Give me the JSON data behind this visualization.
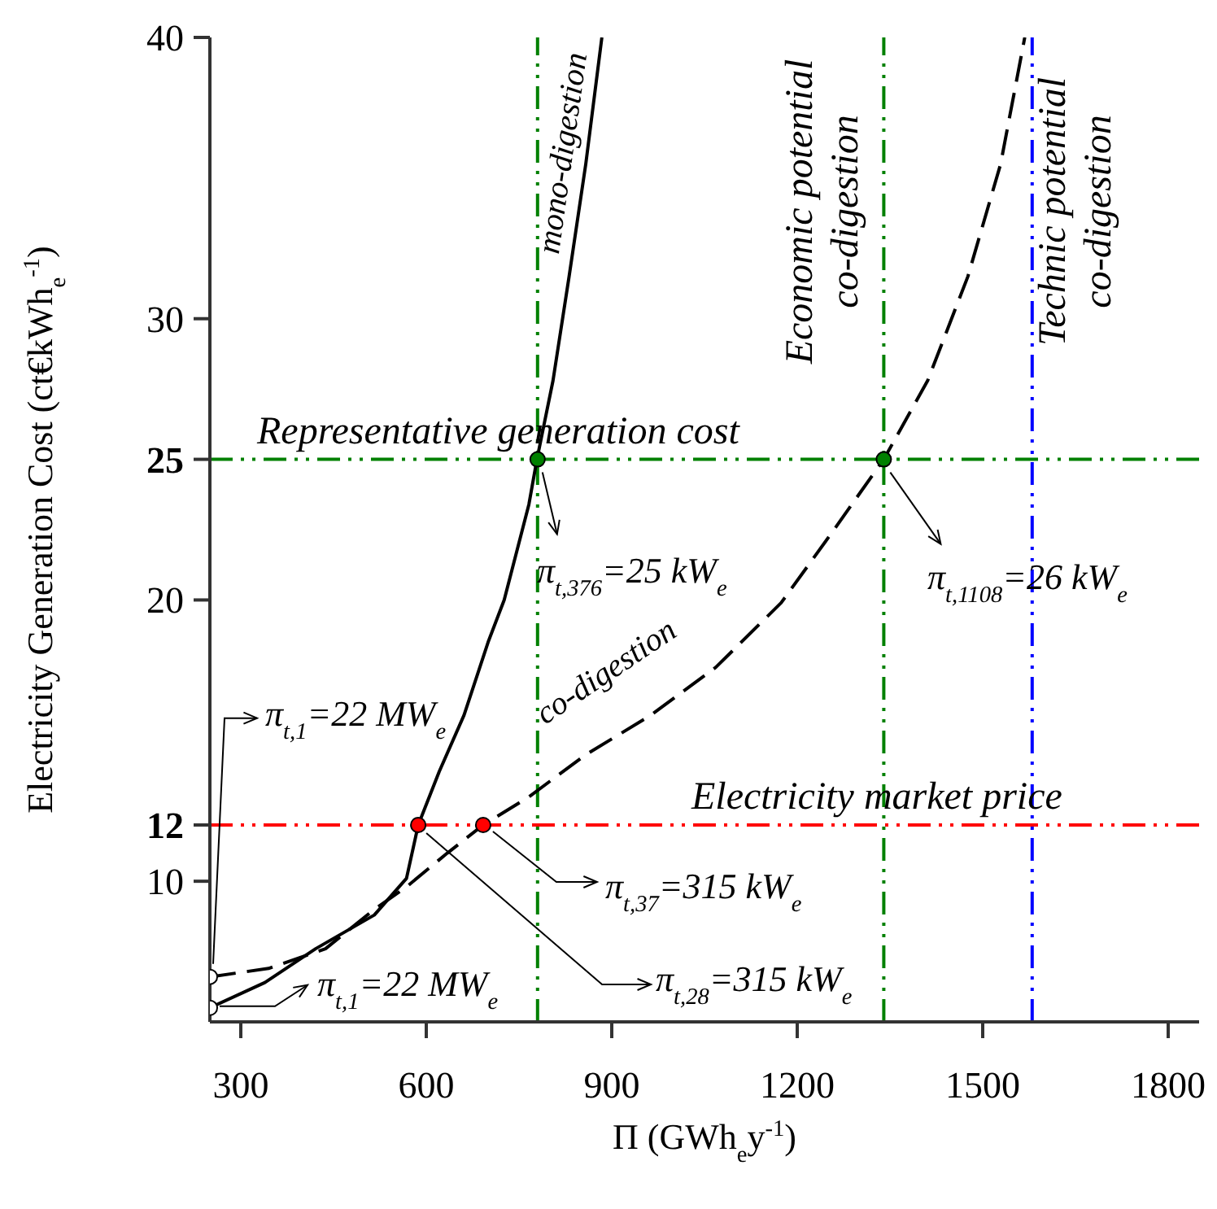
{
  "chart_data": {
    "type": "line",
    "xlabel": "Π (GWh$_{e}$y$^{-1}$)",
    "ylabel": "Electricity Generation Cost (ct€kWh$_{e}$$^{-1}$)",
    "xlim": [
      250,
      1850
    ],
    "xticks": [
      300,
      600,
      900,
      1200,
      1500,
      1800
    ],
    "ylim": [
      5,
      40
    ],
    "yticks": [
      10,
      12,
      20,
      25,
      30,
      40
    ],
    "series": [
      {
        "name": "mono-digestion",
        "color": "#000000",
        "line_style": "solid",
        "marker": "none",
        "x": [
          250,
          339,
          421,
          516,
          568,
          587,
          621,
          661,
          700,
          726,
          766,
          779,
          805,
          831,
          858,
          884
        ],
        "values": [
          5.5,
          6.4,
          7.6,
          8.8,
          10.1,
          12,
          13.9,
          15.9,
          18.5,
          20,
          23.4,
          25,
          27.8,
          31.5,
          35.5,
          40
        ]
      },
      {
        "name": "co-digestion",
        "color": "#000000",
        "line_style": "dashed",
        "marker": "none",
        "x": [
          250,
          345,
          437,
          516,
          568,
          634,
          692,
          766,
          858,
          963,
          1068,
          1174,
          1253,
          1340,
          1411,
          1476,
          1529,
          1568
        ],
        "values": [
          6.6,
          6.9,
          7.6,
          9.0,
          9.8,
          11,
          12,
          13,
          14.5,
          15.9,
          17.6,
          19.9,
          22.3,
          25,
          27.8,
          31.5,
          35.5,
          40
        ]
      },
      {
        "type": "scatter",
        "color": "#008000",
        "marker": "circle",
        "x": [
          780,
          1340
        ],
        "values": [
          25,
          25
        ]
      },
      {
        "type": "scatter",
        "color": "#ff0000",
        "marker": "circle",
        "x": [
          587,
          692
        ],
        "values": [
          12,
          12
        ]
      },
      {
        "type": "scatter",
        "color": "#ffffff",
        "marker": "circle",
        "x": [
          250,
          250
        ],
        "values": [
          6.6,
          5.5
        ]
      }
    ],
    "ref_lines": [
      {
        "axis": "y",
        "value": 25,
        "label": "Representative generation cost",
        "color": "#008000",
        "line_style": "dashed"
      },
      {
        "axis": "y",
        "value": 12,
        "label": "Electricity market price",
        "color": "#ff0000",
        "line_style": "dashed"
      },
      {
        "axis": "x",
        "value": 780,
        "color": "#008000",
        "line_style": "dashed"
      },
      {
        "axis": "x",
        "value": 1340,
        "label": "Economic potential\nco-digestion",
        "color": "#008000",
        "line_style": "dashed"
      },
      {
        "axis": "x",
        "value": 1580,
        "label": "Technic potential\nco-digestion",
        "color": "#0000ff",
        "line_style": "dashed"
      }
    ],
    "annotations": [
      {
        "text": "π$_{t,376}$=25 kW$_{e}$",
        "x": 780,
        "y": 25
      },
      {
        "text": "π$_{t,1108}$=26 kW$_{e}$",
        "x": 1340,
        "y": 25
      },
      {
        "text": "π$_{t,1}$=22 MW$_{e}$",
        "x": 250,
        "y": 6.6
      },
      {
        "text": "π$_{t,1}$=22 MW$_{e}$",
        "x": 250,
        "y": 5.5
      },
      {
        "text": "π$_{t,37}$=315 kW$_{e}$",
        "x": 692,
        "y": 12
      },
      {
        "text": "π$_{t,28}$=315 kW$_{e}$",
        "x": 587,
        "y": 12
      }
    ]
  }
}
